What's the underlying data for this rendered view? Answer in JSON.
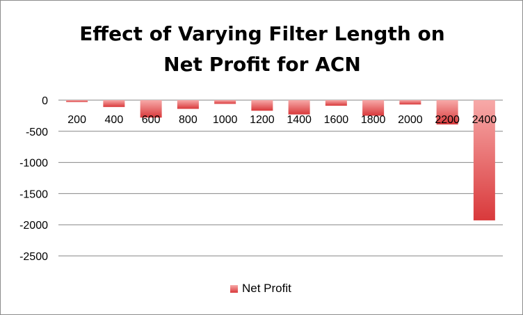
{
  "chart_data": {
    "type": "bar",
    "title": "Effect of Varying Filter Length on\nNet Profit for ACN",
    "xlabel": "",
    "ylabel": "",
    "categories": [
      "200",
      "400",
      "600",
      "800",
      "1000",
      "1200",
      "1400",
      "1600",
      "1800",
      "2000",
      "2200",
      "2400"
    ],
    "series": [
      {
        "name": "Net Profit",
        "values": [
          -30,
          -110,
          -280,
          -140,
          -60,
          -170,
          -230,
          -90,
          -250,
          -70,
          -390,
          -1930
        ]
      }
    ],
    "ylim": [
      -2500,
      0
    ],
    "yticks": [
      0,
      -500,
      -1000,
      -1500,
      -2000,
      -2500
    ],
    "grid": true,
    "legend_position": "bottom",
    "colors": {
      "bar_light": "#f7a9a8",
      "bar_dark": "#d9393b",
      "grid": "#868686"
    }
  }
}
